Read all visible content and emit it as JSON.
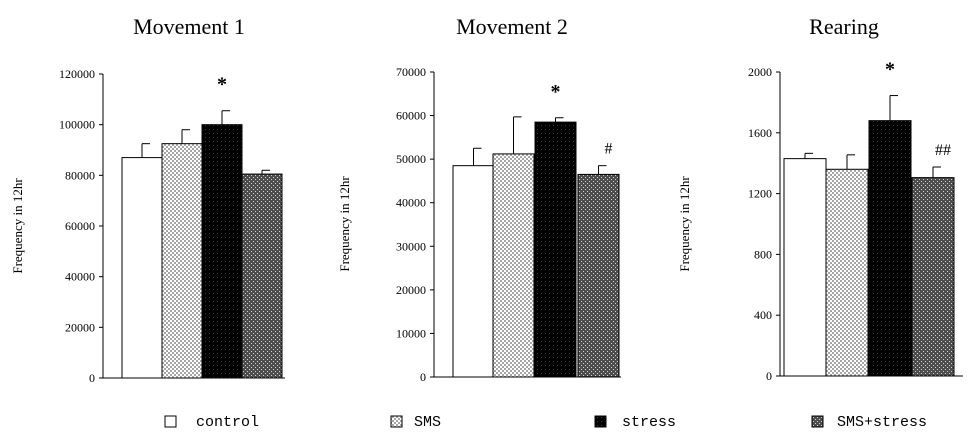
{
  "legend": [
    {
      "label": "control",
      "pattern": "white"
    },
    {
      "label": "SMS",
      "pattern": "light-dots"
    },
    {
      "label": "stress",
      "pattern": "black"
    },
    {
      "label": "SMS+stress",
      "pattern": "dark-dots"
    }
  ],
  "colors": {
    "axis": "#000000",
    "bar_edge": "#000000",
    "white": "#ffffff",
    "light_dots": "#d9d9d9",
    "black": "#000000",
    "dark_dots": "#595959"
  },
  "chart_data": [
    {
      "type": "bar",
      "title": "Movement 1",
      "ylabel": "Frequency in 12hr",
      "xlabel": "",
      "categories": [
        "control",
        "SMS",
        "stress",
        "SMS+stress"
      ],
      "values": [
        87000,
        92500,
        100000,
        80500
      ],
      "errors": [
        5500,
        5500,
        5500,
        1500
      ],
      "ylim": [
        0,
        120000
      ],
      "yticks": [
        "0",
        "20000",
        "40000",
        "60000",
        "80000",
        "100000",
        "120000"
      ],
      "yticks_values": [
        0,
        20000,
        40000,
        60000,
        80000,
        100000,
        120000
      ],
      "annotations": [
        {
          "category": "stress",
          "text": "*"
        }
      ]
    },
    {
      "type": "bar",
      "title": "Movement 2",
      "ylabel": "Frequency in 12hr",
      "xlabel": "",
      "categories": [
        "control",
        "SMS",
        "stress",
        "SMS+stress"
      ],
      "values": [
        48500,
        51200,
        58500,
        46500
      ],
      "errors": [
        4000,
        8500,
        1000,
        2000
      ],
      "ylim": [
        0,
        70000
      ],
      "yticks": [
        "0",
        "10000",
        "20000",
        "30000",
        "40000",
        "50000",
        "60000",
        "70000"
      ],
      "yticks_values": [
        0,
        10000,
        20000,
        30000,
        40000,
        50000,
        60000,
        70000
      ],
      "annotations": [
        {
          "category": "stress",
          "text": "*"
        },
        {
          "category": "SMS+stress",
          "text": "#"
        }
      ]
    },
    {
      "type": "bar",
      "title": "Rearing",
      "ylabel": "Frequency in 12hr",
      "xlabel": "",
      "categories": [
        "control",
        "SMS",
        "stress",
        "SMS+stress"
      ],
      "values": [
        1430,
        1360,
        1680,
        1305
      ],
      "errors": [
        35,
        95,
        165,
        70
      ],
      "ylim": [
        0,
        2000
      ],
      "yticks": [
        "0",
        "400",
        "800",
        "1200",
        "1600",
        "2000"
      ],
      "yticks_values": [
        0,
        400,
        800,
        1200,
        1600,
        2000
      ],
      "annotations": [
        {
          "category": "stress",
          "text": "*"
        },
        {
          "category": "SMS+stress",
          "text": "##"
        }
      ]
    }
  ]
}
